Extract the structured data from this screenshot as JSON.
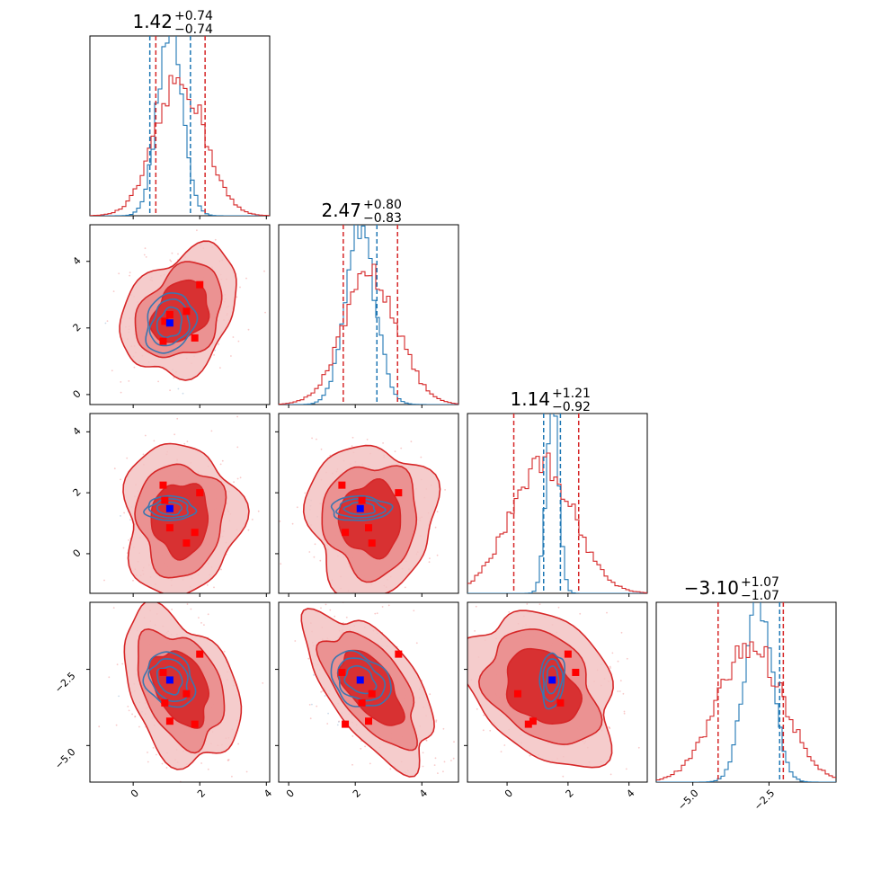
{
  "colors": {
    "red": "#d62728",
    "blue": "#1f77b4",
    "red_fill_outer": "#f3c3c3",
    "red_fill_mid": "#ea8c8c",
    "red_fill_inner": "#d62728",
    "marker_red": "#ff0000",
    "marker_blue": "#0000ff"
  },
  "chart_data": {
    "type": "corner",
    "parameters": [
      {
        "index": 0,
        "range": [
          -1.3,
          4.1
        ],
        "ticks": [
          0,
          2,
          4
        ],
        "tick_labels": [
          "0",
          "2",
          "4"
        ],
        "title_main": "1.42",
        "title_plus": "+0.74",
        "title_minus": "−0.74",
        "red_quantiles": [
          0.68,
          1.42,
          2.16
        ],
        "blue_quantiles": [
          0.5,
          1.72
        ],
        "red_mean": 1.42,
        "red_sigma": 0.74,
        "blue_mean": 1.1,
        "blue_sigma": 0.37
      },
      {
        "index": 1,
        "range": [
          -0.3,
          5.1
        ],
        "ticks": [
          0,
          2,
          4
        ],
        "tick_labels": [
          "0",
          "2",
          "4"
        ],
        "title_main": "2.47",
        "title_plus": "+0.80",
        "title_minus": "−0.83",
        "red_quantiles": [
          1.64,
          2.47,
          3.27
        ],
        "blue_quantiles": [
          2.65
        ],
        "red_mean": 2.47,
        "red_sigma": 0.81,
        "blue_mean": 2.15,
        "blue_sigma": 0.45
      },
      {
        "index": 2,
        "range": [
          -1.3,
          4.6
        ],
        "ticks": [
          0,
          2,
          4
        ],
        "tick_labels": [
          "0",
          "2",
          "4"
        ],
        "title_main": "1.14",
        "title_plus": "+1.21",
        "title_minus": "−0.92",
        "red_quantiles": [
          0.22,
          1.14,
          2.35
        ],
        "blue_quantiles": [
          1.2,
          1.75
        ],
        "red_mean": 1.14,
        "red_sigma": 1.05,
        "blue_mean": 1.48,
        "blue_sigma": 0.2
      },
      {
        "index": 3,
        "range": [
          -6.2,
          -0.3
        ],
        "ticks": [
          -5,
          -2.5
        ],
        "tick_labels": [
          "−5.0",
          "−2.5"
        ],
        "title_main": "−3.10",
        "title_plus": "+1.07",
        "title_minus": "−1.07",
        "red_quantiles": [
          -4.17,
          -3.1,
          -2.03
        ],
        "blue_quantiles": [
          -2.15
        ],
        "red_mean": -3.1,
        "red_sigma": 1.07,
        "blue_mean": -2.85,
        "blue_sigma": 0.45
      }
    ],
    "red_points": [
      [
        0.9,
        1.6,
        2.25,
        -2.6
      ],
      [
        1.1,
        2.4,
        0.85,
        -4.2
      ],
      [
        1.6,
        2.5,
        0.35,
        -3.3
      ],
      [
        2.0,
        3.3,
        2.0,
        -2.0
      ],
      [
        0.95,
        2.2,
        1.75,
        -3.6
      ],
      [
        1.85,
        1.7,
        0.7,
        -4.3
      ]
    ],
    "blue_point": [
      1.1,
      2.15,
      1.48,
      -2.85
    ],
    "marginal_x_scale": "linear",
    "grid": false,
    "legend": "none"
  }
}
